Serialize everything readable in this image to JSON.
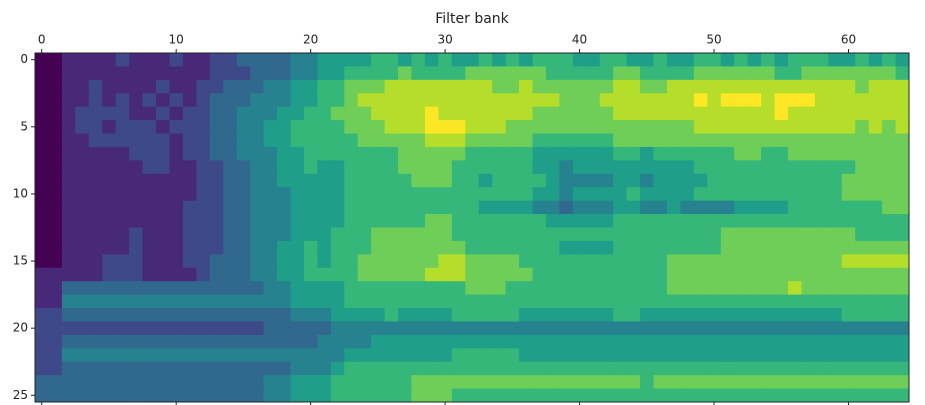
{
  "chart_data": {
    "type": "heatmap",
    "xlabel": "Filter bank",
    "xlim": [
      -0.5,
      64.5
    ],
    "ylim": [
      -0.5,
      25.5
    ],
    "xticks": [
      0,
      10,
      20,
      30,
      40,
      50,
      60
    ],
    "yticks": [
      0,
      5,
      10,
      15,
      20,
      25
    ],
    "clim": [
      0,
      9
    ],
    "colormap": [
      "#440154",
      "#482878",
      "#3e4989",
      "#31688e",
      "#26828e",
      "#1f9e89",
      "#35b779",
      "#6ece58",
      "#b5de2b",
      "#fde725"
    ],
    "z": [
      [
        0,
        0,
        1,
        1,
        1,
        1,
        2,
        1,
        1,
        1,
        2,
        1,
        1,
        2,
        2,
        3,
        3,
        3,
        3,
        4,
        4,
        5,
        5,
        5,
        5,
        6,
        6,
        5,
        6,
        5,
        6,
        5,
        5,
        6,
        5,
        6,
        5,
        6,
        6,
        6,
        5,
        5,
        6,
        6,
        5,
        5,
        6,
        5,
        5,
        6,
        6,
        5,
        6,
        5,
        6,
        5,
        6,
        6,
        6,
        5,
        5,
        6,
        5,
        6,
        5
      ],
      [
        0,
        0,
        1,
        1,
        1,
        1,
        1,
        1,
        1,
        1,
        1,
        1,
        1,
        2,
        2,
        2,
        3,
        3,
        3,
        4,
        4,
        5,
        5,
        6,
        6,
        6,
        6,
        7,
        6,
        6,
        6,
        6,
        7,
        7,
        7,
        7,
        7,
        7,
        6,
        6,
        6,
        6,
        6,
        7,
        7,
        6,
        6,
        6,
        6,
        7,
        7,
        7,
        7,
        7,
        7,
        6,
        6,
        7,
        7,
        7,
        7,
        7,
        7,
        7,
        6
      ],
      [
        0,
        0,
        1,
        1,
        2,
        1,
        1,
        1,
        1,
        2,
        1,
        1,
        2,
        2,
        3,
        3,
        3,
        4,
        4,
        5,
        5,
        6,
        6,
        7,
        7,
        7,
        8,
        8,
        8,
        8,
        8,
        8,
        8,
        8,
        7,
        7,
        8,
        7,
        7,
        7,
        7,
        7,
        7,
        8,
        8,
        7,
        7,
        8,
        8,
        8,
        8,
        8,
        8,
        8,
        8,
        8,
        8,
        8,
        8,
        8,
        8,
        7,
        8,
        8,
        8
      ],
      [
        0,
        0,
        1,
        1,
        2,
        1,
        2,
        1,
        2,
        1,
        2,
        1,
        2,
        3,
        3,
        3,
        4,
        4,
        4,
        5,
        5,
        6,
        6,
        7,
        8,
        8,
        8,
        8,
        8,
        8,
        8,
        8,
        8,
        8,
        8,
        8,
        8,
        8,
        8,
        7,
        7,
        7,
        8,
        8,
        8,
        8,
        8,
        8,
        8,
        9,
        8,
        9,
        9,
        9,
        8,
        9,
        9,
        9,
        8,
        8,
        8,
        8,
        8,
        8,
        8
      ],
      [
        0,
        0,
        1,
        2,
        2,
        2,
        2,
        1,
        1,
        2,
        1,
        2,
        2,
        3,
        3,
        4,
        4,
        4,
        5,
        5,
        6,
        6,
        7,
        7,
        7,
        8,
        8,
        8,
        8,
        9,
        8,
        8,
        8,
        8,
        8,
        8,
        8,
        7,
        7,
        7,
        7,
        7,
        7,
        8,
        8,
        8,
        8,
        8,
        8,
        8,
        8,
        8,
        8,
        8,
        8,
        9,
        8,
        8,
        8,
        8,
        8,
        8,
        8,
        8,
        8
      ],
      [
        0,
        0,
        1,
        2,
        2,
        1,
        2,
        2,
        2,
        1,
        2,
        2,
        2,
        3,
        3,
        4,
        4,
        5,
        5,
        6,
        6,
        6,
        6,
        7,
        7,
        7,
        8,
        8,
        8,
        9,
        9,
        9,
        8,
        8,
        8,
        7,
        7,
        7,
        7,
        7,
        7,
        7,
        7,
        7,
        7,
        7,
        7,
        7,
        7,
        8,
        8,
        8,
        8,
        8,
        8,
        8,
        8,
        8,
        8,
        8,
        8,
        7,
        8,
        7,
        8
      ],
      [
        0,
        0,
        1,
        1,
        2,
        2,
        2,
        2,
        2,
        2,
        1,
        2,
        2,
        3,
        3,
        4,
        4,
        5,
        5,
        6,
        6,
        6,
        6,
        6,
        7,
        7,
        7,
        7,
        7,
        8,
        8,
        8,
        7,
        7,
        7,
        7,
        7,
        6,
        6,
        6,
        6,
        6,
        6,
        7,
        7,
        7,
        7,
        7,
        7,
        7,
        7,
        7,
        7,
        7,
        7,
        7,
        7,
        7,
        7,
        7,
        7,
        7,
        7,
        7,
        7
      ],
      [
        0,
        0,
        1,
        1,
        1,
        1,
        1,
        2,
        2,
        2,
        1,
        2,
        2,
        3,
        3,
        4,
        4,
        4,
        5,
        5,
        6,
        6,
        6,
        6,
        6,
        6,
        6,
        7,
        7,
        7,
        7,
        7,
        6,
        6,
        6,
        6,
        6,
        5,
        5,
        5,
        5,
        5,
        5,
        6,
        6,
        5,
        6,
        6,
        6,
        6,
        6,
        6,
        7,
        7,
        6,
        6,
        7,
        7,
        7,
        7,
        7,
        7,
        7,
        7,
        7
      ],
      [
        0,
        0,
        1,
        1,
        1,
        1,
        1,
        1,
        2,
        2,
        1,
        1,
        2,
        2,
        3,
        3,
        4,
        4,
        5,
        5,
        6,
        5,
        5,
        6,
        6,
        6,
        6,
        7,
        7,
        7,
        7,
        6,
        6,
        6,
        6,
        6,
        6,
        5,
        5,
        4,
        5,
        5,
        5,
        5,
        5,
        5,
        5,
        5,
        5,
        6,
        6,
        6,
        6,
        6,
        6,
        6,
        6,
        6,
        6,
        6,
        6,
        7,
        7,
        7,
        7
      ],
      [
        0,
        0,
        1,
        1,
        1,
        1,
        1,
        1,
        1,
        1,
        1,
        1,
        2,
        2,
        3,
        3,
        4,
        4,
        5,
        5,
        5,
        5,
        5,
        6,
        6,
        6,
        6,
        6,
        7,
        7,
        7,
        6,
        6,
        5,
        6,
        6,
        6,
        6,
        5,
        4,
        4,
        4,
        4,
        5,
        5,
        4,
        5,
        5,
        5,
        5,
        6,
        6,
        6,
        6,
        6,
        6,
        6,
        6,
        6,
        6,
        7,
        7,
        7,
        7,
        7
      ],
      [
        0,
        0,
        1,
        1,
        1,
        1,
        1,
        1,
        1,
        1,
        1,
        1,
        2,
        2,
        3,
        3,
        4,
        4,
        4,
        5,
        5,
        5,
        5,
        6,
        6,
        6,
        6,
        6,
        6,
        6,
        6,
        6,
        6,
        6,
        6,
        6,
        6,
        5,
        5,
        4,
        5,
        5,
        5,
        5,
        6,
        5,
        5,
        5,
        5,
        6,
        6,
        6,
        6,
        6,
        6,
        6,
        6,
        6,
        6,
        6,
        7,
        7,
        7,
        7,
        7
      ],
      [
        0,
        0,
        1,
        1,
        1,
        1,
        1,
        1,
        1,
        1,
        1,
        2,
        2,
        2,
        3,
        3,
        4,
        4,
        4,
        5,
        5,
        5,
        5,
        6,
        6,
        6,
        6,
        6,
        6,
        6,
        6,
        6,
        6,
        5,
        5,
        5,
        5,
        4,
        4,
        3,
        4,
        4,
        4,
        5,
        5,
        4,
        4,
        5,
        4,
        4,
        4,
        4,
        5,
        5,
        5,
        5,
        6,
        6,
        6,
        6,
        6,
        6,
        6,
        7,
        7
      ],
      [
        0,
        0,
        1,
        1,
        1,
        1,
        1,
        1,
        1,
        1,
        1,
        2,
        2,
        2,
        3,
        3,
        4,
        4,
        4,
        5,
        5,
        5,
        5,
        6,
        6,
        6,
        6,
        6,
        6,
        7,
        7,
        6,
        6,
        6,
        6,
        6,
        6,
        6,
        5,
        5,
        5,
        5,
        5,
        6,
        6,
        6,
        6,
        6,
        6,
        6,
        6,
        6,
        6,
        6,
        6,
        6,
        6,
        6,
        6,
        6,
        6,
        6,
        6,
        6,
        6
      ],
      [
        0,
        0,
        1,
        1,
        1,
        1,
        1,
        2,
        1,
        1,
        1,
        2,
        2,
        2,
        3,
        3,
        4,
        4,
        4,
        5,
        5,
        5,
        6,
        6,
        6,
        7,
        7,
        7,
        7,
        7,
        7,
        6,
        6,
        6,
        6,
        6,
        6,
        6,
        6,
        6,
        6,
        6,
        6,
        6,
        6,
        6,
        6,
        6,
        6,
        6,
        6,
        7,
        7,
        7,
        7,
        7,
        7,
        7,
        7,
        7,
        7,
        6,
        6,
        6,
        6
      ],
      [
        0,
        0,
        1,
        1,
        1,
        1,
        1,
        2,
        1,
        1,
        1,
        2,
        2,
        2,
        3,
        3,
        4,
        4,
        5,
        5,
        6,
        5,
        6,
        6,
        6,
        7,
        7,
        7,
        7,
        7,
        7,
        7,
        6,
        6,
        6,
        6,
        6,
        6,
        6,
        5,
        5,
        5,
        5,
        6,
        6,
        6,
        6,
        6,
        6,
        6,
        6,
        7,
        7,
        7,
        7,
        7,
        7,
        7,
        7,
        7,
        7,
        7,
        7,
        7,
        7
      ],
      [
        0,
        0,
        1,
        1,
        1,
        2,
        2,
        2,
        1,
        1,
        1,
        2,
        2,
        3,
        3,
        3,
        4,
        4,
        5,
        5,
        6,
        5,
        6,
        6,
        7,
        7,
        7,
        7,
        7,
        7,
        8,
        8,
        7,
        7,
        7,
        7,
        6,
        6,
        6,
        6,
        6,
        6,
        6,
        6,
        6,
        6,
        6,
        7,
        7,
        7,
        7,
        7,
        7,
        7,
        7,
        7,
        7,
        7,
        7,
        7,
        8,
        8,
        8,
        8,
        8
      ],
      [
        1,
        1,
        1,
        1,
        1,
        2,
        2,
        2,
        1,
        1,
        1,
        1,
        2,
        3,
        3,
        3,
        4,
        4,
        5,
        5,
        6,
        6,
        6,
        6,
        7,
        7,
        7,
        7,
        7,
        8,
        8,
        8,
        7,
        7,
        7,
        7,
        7,
        6,
        6,
        6,
        6,
        6,
        6,
        6,
        6,
        6,
        6,
        7,
        7,
        7,
        7,
        7,
        7,
        7,
        7,
        7,
        7,
        7,
        7,
        7,
        7,
        7,
        7,
        7,
        7
      ],
      [
        1,
        1,
        3,
        3,
        3,
        3,
        3,
        3,
        3,
        3,
        3,
        3,
        3,
        3,
        3,
        3,
        3,
        4,
        4,
        5,
        5,
        5,
        5,
        6,
        6,
        6,
        6,
        6,
        6,
        6,
        6,
        6,
        7,
        7,
        7,
        6,
        6,
        6,
        6,
        6,
        6,
        6,
        6,
        6,
        6,
        6,
        6,
        7,
        7,
        7,
        7,
        7,
        7,
        7,
        7,
        7,
        8,
        7,
        7,
        7,
        7,
        7,
        7,
        7,
        7
      ],
      [
        1,
        1,
        4,
        4,
        4,
        4,
        4,
        4,
        4,
        4,
        4,
        4,
        4,
        4,
        4,
        4,
        4,
        4,
        4,
        5,
        5,
        5,
        5,
        6,
        6,
        6,
        6,
        6,
        6,
        6,
        6,
        6,
        6,
        6,
        6,
        6,
        6,
        6,
        6,
        6,
        6,
        6,
        6,
        6,
        6,
        6,
        6,
        6,
        6,
        6,
        6,
        6,
        6,
        6,
        6,
        6,
        6,
        6,
        6,
        6,
        6,
        6,
        6,
        6,
        6
      ],
      [
        2,
        2,
        3,
        3,
        3,
        3,
        3,
        3,
        3,
        3,
        3,
        3,
        3,
        3,
        3,
        3,
        3,
        3,
        3,
        4,
        4,
        4,
        5,
        5,
        5,
        5,
        6,
        5,
        5,
        5,
        5,
        6,
        6,
        6,
        6,
        6,
        5,
        5,
        5,
        5,
        5,
        5,
        5,
        6,
        6,
        5,
        5,
        5,
        5,
        5,
        5,
        5,
        5,
        5,
        5,
        5,
        5,
        5,
        5,
        5,
        6,
        6,
        6,
        6,
        6
      ],
      [
        2,
        2,
        2,
        2,
        2,
        2,
        2,
        2,
        2,
        2,
        2,
        2,
        2,
        2,
        2,
        2,
        2,
        3,
        3,
        3,
        3,
        3,
        4,
        4,
        4,
        4,
        4,
        4,
        4,
        4,
        4,
        4,
        4,
        4,
        4,
        4,
        4,
        4,
        4,
        4,
        4,
        4,
        4,
        4,
        4,
        4,
        4,
        4,
        4,
        4,
        4,
        4,
        4,
        4,
        4,
        4,
        4,
        4,
        4,
        4,
        4,
        4,
        4,
        4,
        4
      ],
      [
        2,
        2,
        3,
        3,
        3,
        3,
        3,
        3,
        3,
        3,
        3,
        3,
        3,
        3,
        3,
        3,
        3,
        3,
        3,
        3,
        3,
        4,
        4,
        4,
        4,
        5,
        5,
        5,
        5,
        5,
        5,
        5,
        5,
        5,
        5,
        5,
        5,
        5,
        5,
        5,
        5,
        5,
        5,
        5,
        5,
        5,
        5,
        5,
        5,
        5,
        5,
        5,
        5,
        5,
        5,
        5,
        5,
        5,
        5,
        5,
        5,
        5,
        5,
        5,
        5
      ],
      [
        2,
        2,
        4,
        4,
        4,
        4,
        4,
        4,
        4,
        4,
        4,
        4,
        4,
        4,
        4,
        4,
        4,
        4,
        4,
        4,
        4,
        4,
        4,
        5,
        5,
        5,
        5,
        5,
        5,
        5,
        5,
        6,
        6,
        6,
        6,
        6,
        5,
        5,
        5,
        5,
        5,
        5,
        5,
        5,
        5,
        5,
        5,
        5,
        5,
        5,
        5,
        5,
        5,
        5,
        5,
        5,
        5,
        5,
        5,
        5,
        5,
        5,
        5,
        5,
        5
      ],
      [
        2,
        2,
        3,
        3,
        3,
        3,
        3,
        3,
        3,
        3,
        3,
        3,
        3,
        3,
        3,
        3,
        3,
        3,
        3,
        4,
        4,
        4,
        5,
        6,
        6,
        6,
        6,
        6,
        6,
        6,
        6,
        6,
        6,
        6,
        6,
        6,
        6,
        6,
        6,
        6,
        6,
        6,
        6,
        6,
        6,
        6,
        6,
        6,
        6,
        6,
        6,
        6,
        6,
        6,
        6,
        6,
        6,
        6,
        6,
        6,
        6,
        6,
        6,
        6,
        6
      ],
      [
        3,
        3,
        3,
        3,
        3,
        3,
        3,
        3,
        3,
        3,
        3,
        3,
        3,
        3,
        3,
        3,
        3,
        4,
        4,
        5,
        5,
        5,
        6,
        6,
        6,
        6,
        6,
        6,
        7,
        7,
        7,
        7,
        7,
        7,
        7,
        7,
        7,
        7,
        7,
        7,
        7,
        7,
        7,
        7,
        7,
        6,
        7,
        7,
        7,
        7,
        7,
        7,
        7,
        7,
        7,
        7,
        7,
        7,
        7,
        7,
        7,
        7,
        7,
        7,
        7
      ],
      [
        3,
        3,
        3,
        3,
        3,
        3,
        3,
        3,
        3,
        3,
        3,
        3,
        3,
        3,
        3,
        3,
        3,
        4,
        4,
        5,
        5,
        5,
        6,
        6,
        6,
        6,
        6,
        6,
        7,
        7,
        7,
        6,
        6,
        6,
        6,
        6,
        6,
        6,
        6,
        6,
        6,
        6,
        6,
        6,
        6,
        6,
        6,
        6,
        6,
        6,
        6,
        6,
        6,
        6,
        6,
        6,
        6,
        6,
        6,
        6,
        6,
        6,
        6,
        6,
        6
      ]
    ]
  }
}
